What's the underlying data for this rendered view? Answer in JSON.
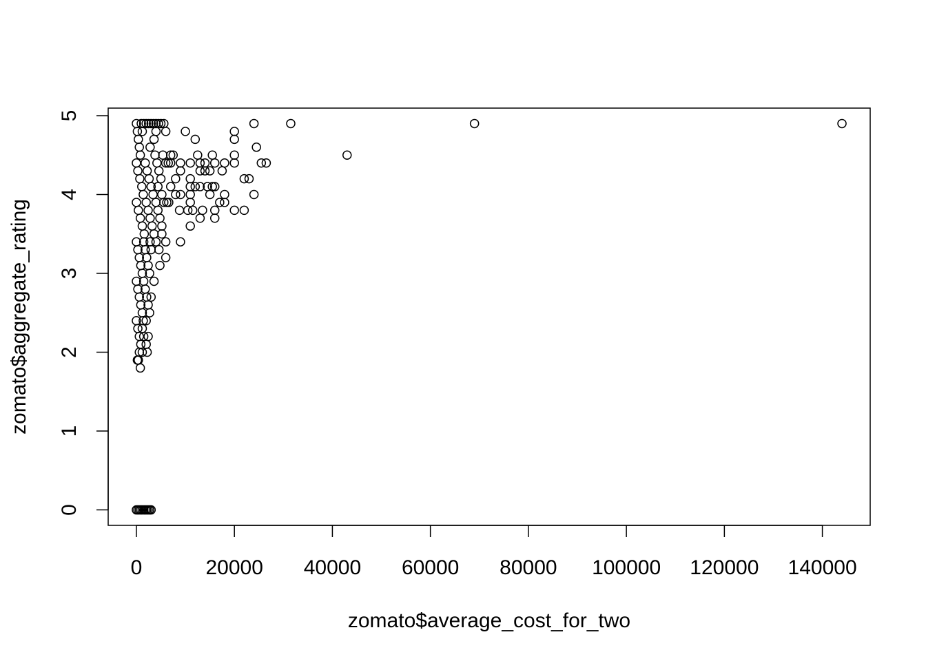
{
  "chart_data": {
    "type": "scatter",
    "title": "",
    "xlabel": "zomato$average_cost_for_two",
    "ylabel": "zomato$aggregate_rating",
    "xlim": [
      -5760,
      149760
    ],
    "ylim": [
      -0.196,
      5.096
    ],
    "x_ticks": [
      0,
      20000,
      40000,
      60000,
      80000,
      100000,
      120000,
      140000
    ],
    "x_tick_labels": [
      "0",
      "20000",
      "40000",
      "60000",
      "80000",
      "100000",
      "120000",
      "140000"
    ],
    "y_ticks": [
      0,
      1,
      2,
      3,
      4,
      5
    ],
    "y_tick_labels": [
      "0",
      "1",
      "2",
      "3",
      "4",
      "5"
    ],
    "grid": false,
    "legend": "none",
    "marker": "open-circle",
    "points": [
      {
        "x": 0,
        "y": 4.9
      },
      {
        "x": 200,
        "y": 4.8
      },
      {
        "x": 400,
        "y": 4.7
      },
      {
        "x": 600,
        "y": 4.6
      },
      {
        "x": 800,
        "y": 4.5
      },
      {
        "x": 1000,
        "y": 4.9
      },
      {
        "x": 1200,
        "y": 4.8
      },
      {
        "x": 1500,
        "y": 4.9
      },
      {
        "x": 2000,
        "y": 4.9
      },
      {
        "x": 2500,
        "y": 4.9
      },
      {
        "x": 3000,
        "y": 4.9
      },
      {
        "x": 3500,
        "y": 4.9
      },
      {
        "x": 4000,
        "y": 4.9
      },
      {
        "x": 4500,
        "y": 4.9
      },
      {
        "x": 5000,
        "y": 4.9
      },
      {
        "x": 5600,
        "y": 4.9
      },
      {
        "x": 6000,
        "y": 4.8
      },
      {
        "x": 4000,
        "y": 4.8
      },
      {
        "x": 3600,
        "y": 4.7
      },
      {
        "x": 2800,
        "y": 4.6
      },
      {
        "x": 0,
        "y": 4.4
      },
      {
        "x": 300,
        "y": 4.3
      },
      {
        "x": 700,
        "y": 4.2
      },
      {
        "x": 1100,
        "y": 4.1
      },
      {
        "x": 1400,
        "y": 4.0
      },
      {
        "x": 1800,
        "y": 4.4
      },
      {
        "x": 2200,
        "y": 4.3
      },
      {
        "x": 2600,
        "y": 4.2
      },
      {
        "x": 3000,
        "y": 4.1
      },
      {
        "x": 3400,
        "y": 4.0
      },
      {
        "x": 3800,
        "y": 4.5
      },
      {
        "x": 4200,
        "y": 4.4
      },
      {
        "x": 4600,
        "y": 4.3
      },
      {
        "x": 5000,
        "y": 4.2
      },
      {
        "x": 5400,
        "y": 4.5
      },
      {
        "x": 6000,
        "y": 4.4
      },
      {
        "x": 6500,
        "y": 4.4
      },
      {
        "x": 7000,
        "y": 4.5
      },
      {
        "x": 4400,
        "y": 4.1
      },
      {
        "x": 5200,
        "y": 4.0
      },
      {
        "x": 0,
        "y": 3.9
      },
      {
        "x": 400,
        "y": 3.8
      },
      {
        "x": 800,
        "y": 3.7
      },
      {
        "x": 1200,
        "y": 3.6
      },
      {
        "x": 1600,
        "y": 3.5
      },
      {
        "x": 2000,
        "y": 3.9
      },
      {
        "x": 2400,
        "y": 3.8
      },
      {
        "x": 2800,
        "y": 3.7
      },
      {
        "x": 3200,
        "y": 3.6
      },
      {
        "x": 3600,
        "y": 3.5
      },
      {
        "x": 4000,
        "y": 3.9
      },
      {
        "x": 4400,
        "y": 3.8
      },
      {
        "x": 4800,
        "y": 3.7
      },
      {
        "x": 5200,
        "y": 3.6
      },
      {
        "x": 5600,
        "y": 3.9
      },
      {
        "x": 6200,
        "y": 3.9
      },
      {
        "x": 6600,
        "y": 3.9
      },
      {
        "x": 4000,
        "y": 3.4
      },
      {
        "x": 6000,
        "y": 3.4
      },
      {
        "x": 5200,
        "y": 3.5
      },
      {
        "x": 0,
        "y": 3.4
      },
      {
        "x": 300,
        "y": 3.3
      },
      {
        "x": 600,
        "y": 3.2
      },
      {
        "x": 900,
        "y": 3.1
      },
      {
        "x": 1200,
        "y": 3.0
      },
      {
        "x": 1500,
        "y": 3.4
      },
      {
        "x": 1800,
        "y": 3.3
      },
      {
        "x": 2100,
        "y": 3.2
      },
      {
        "x": 2400,
        "y": 3.1
      },
      {
        "x": 2700,
        "y": 3.0
      },
      {
        "x": 3000,
        "y": 3.3
      },
      {
        "x": 4600,
        "y": 3.3
      },
      {
        "x": 6000,
        "y": 3.2
      },
      {
        "x": 4800,
        "y": 3.1
      },
      {
        "x": 2800,
        "y": 3.4
      },
      {
        "x": 0,
        "y": 2.9
      },
      {
        "x": 300,
        "y": 2.8
      },
      {
        "x": 600,
        "y": 2.7
      },
      {
        "x": 900,
        "y": 2.6
      },
      {
        "x": 1200,
        "y": 2.5
      },
      {
        "x": 1500,
        "y": 2.9
      },
      {
        "x": 1800,
        "y": 2.8
      },
      {
        "x": 2100,
        "y": 2.7
      },
      {
        "x": 2400,
        "y": 2.6
      },
      {
        "x": 2700,
        "y": 2.5
      },
      {
        "x": 3000,
        "y": 2.7
      },
      {
        "x": 3600,
        "y": 2.9
      },
      {
        "x": 2000,
        "y": 2.4
      },
      {
        "x": 1400,
        "y": 2.4
      },
      {
        "x": 0,
        "y": 2.4
      },
      {
        "x": 300,
        "y": 2.3
      },
      {
        "x": 600,
        "y": 2.2
      },
      {
        "x": 900,
        "y": 2.1
      },
      {
        "x": 1200,
        "y": 2.3
      },
      {
        "x": 1500,
        "y": 2.2
      },
      {
        "x": 2000,
        "y": 2.1
      },
      {
        "x": 2400,
        "y": 2.2
      },
      {
        "x": 2200,
        "y": 2.0
      },
      {
        "x": 1200,
        "y": 2.0
      },
      {
        "x": 600,
        "y": 2.0
      },
      {
        "x": 200,
        "y": 1.9
      },
      {
        "x": 400,
        "y": 1.9
      },
      {
        "x": 800,
        "y": 1.8
      },
      {
        "x": 0,
        "y": 0
      },
      {
        "x": 300,
        "y": 0
      },
      {
        "x": 600,
        "y": 0
      },
      {
        "x": 900,
        "y": 0
      },
      {
        "x": 1200,
        "y": 0
      },
      {
        "x": 1500,
        "y": 0
      },
      {
        "x": 1800,
        "y": 0
      },
      {
        "x": 2100,
        "y": 0
      },
      {
        "x": 2400,
        "y": 0
      },
      {
        "x": 2700,
        "y": 0
      },
      {
        "x": 3000,
        "y": 0
      },
      {
        "x": 7000,
        "y": 4.4
      },
      {
        "x": 7000,
        "y": 4.1
      },
      {
        "x": 7500,
        "y": 4.5
      },
      {
        "x": 8000,
        "y": 4.2
      },
      {
        "x": 8000,
        "y": 4.0
      },
      {
        "x": 9000,
        "y": 4.4
      },
      {
        "x": 9000,
        "y": 4.3
      },
      {
        "x": 9000,
        "y": 4.0
      },
      {
        "x": 9000,
        "y": 3.4
      },
      {
        "x": 8800,
        "y": 3.8
      },
      {
        "x": 10000,
        "y": 4.8
      },
      {
        "x": 10500,
        "y": 3.8
      },
      {
        "x": 11000,
        "y": 4.4
      },
      {
        "x": 11000,
        "y": 4.2
      },
      {
        "x": 11000,
        "y": 4.1
      },
      {
        "x": 11000,
        "y": 4.0
      },
      {
        "x": 11000,
        "y": 3.9
      },
      {
        "x": 11000,
        "y": 3.6
      },
      {
        "x": 11500,
        "y": 3.8
      },
      {
        "x": 12000,
        "y": 4.7
      },
      {
        "x": 12000,
        "y": 4.1
      },
      {
        "x": 12500,
        "y": 4.5
      },
      {
        "x": 13000,
        "y": 4.4
      },
      {
        "x": 13000,
        "y": 4.3
      },
      {
        "x": 13000,
        "y": 4.1
      },
      {
        "x": 13000,
        "y": 3.7
      },
      {
        "x": 13500,
        "y": 3.8
      },
      {
        "x": 14000,
        "y": 4.4
      },
      {
        "x": 14000,
        "y": 4.3
      },
      {
        "x": 14500,
        "y": 4.1
      },
      {
        "x": 15000,
        "y": 4.3
      },
      {
        "x": 15000,
        "y": 4.0
      },
      {
        "x": 15500,
        "y": 4.5
      },
      {
        "x": 15500,
        "y": 4.1
      },
      {
        "x": 16000,
        "y": 4.4
      },
      {
        "x": 16000,
        "y": 4.1
      },
      {
        "x": 16000,
        "y": 3.8
      },
      {
        "x": 16000,
        "y": 3.7
      },
      {
        "x": 17000,
        "y": 3.9
      },
      {
        "x": 17500,
        "y": 4.3
      },
      {
        "x": 18000,
        "y": 4.4
      },
      {
        "x": 18000,
        "y": 4.0
      },
      {
        "x": 18000,
        "y": 3.9
      },
      {
        "x": 20000,
        "y": 4.8
      },
      {
        "x": 20000,
        "y": 4.7
      },
      {
        "x": 20000,
        "y": 4.5
      },
      {
        "x": 20000,
        "y": 4.4
      },
      {
        "x": 20000,
        "y": 3.8
      },
      {
        "x": 22000,
        "y": 4.2
      },
      {
        "x": 22000,
        "y": 3.8
      },
      {
        "x": 23000,
        "y": 4.2
      },
      {
        "x": 24000,
        "y": 4.9
      },
      {
        "x": 24000,
        "y": 4.0
      },
      {
        "x": 24500,
        "y": 4.6
      },
      {
        "x": 25500,
        "y": 4.4
      },
      {
        "x": 26500,
        "y": 4.4
      },
      {
        "x": 31500,
        "y": 4.9
      },
      {
        "x": 43000,
        "y": 4.5
      },
      {
        "x": 69000,
        "y": 4.9
      },
      {
        "x": 144000,
        "y": 4.9
      }
    ]
  }
}
